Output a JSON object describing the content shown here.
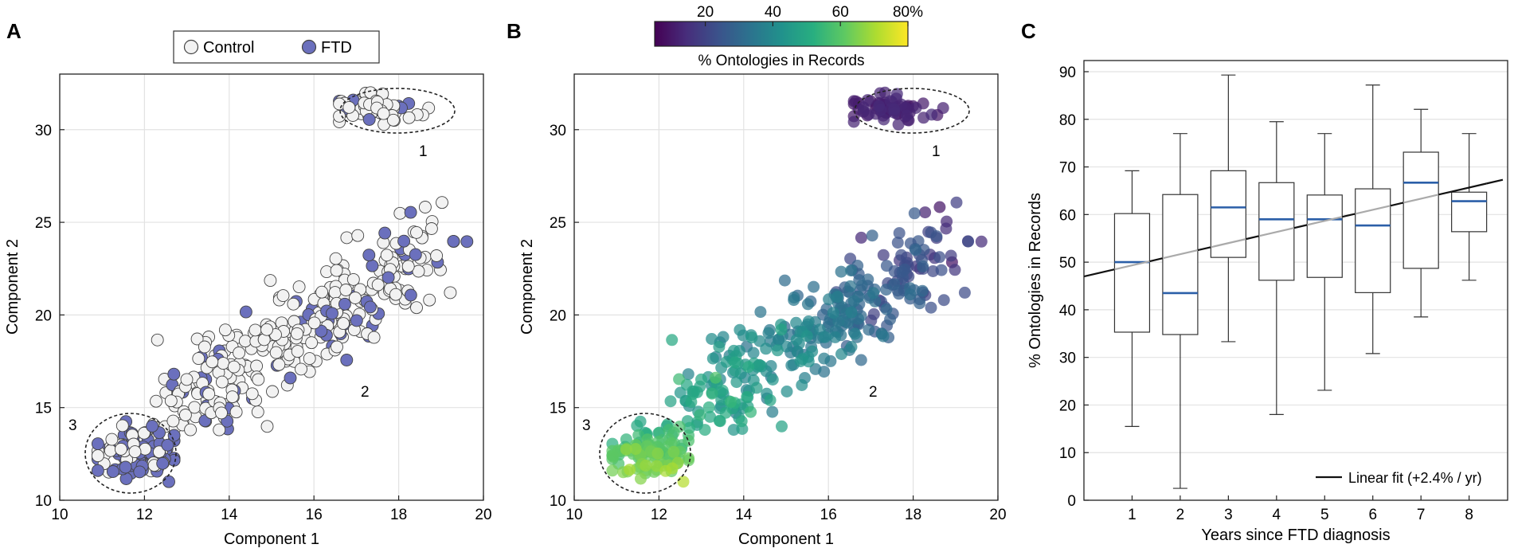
{
  "panels": {
    "a_label": "A",
    "b_label": "B",
    "c_label": "C"
  },
  "colors": {
    "control_fill": "#f2f2f2",
    "ftd_fill": "#6b70bd",
    "grid": "#e2e2e2",
    "median": "#2b5fa8",
    "fit_dark": "#111111",
    "fit_light": "#aaaaaa",
    "viridis": [
      "#440154",
      "#472d7b",
      "#3b528b",
      "#2c728e",
      "#21918c",
      "#28ae80",
      "#5ec962",
      "#addc30",
      "#fde725"
    ]
  },
  "chart_data": [
    {
      "panel": "A",
      "type": "scatter",
      "xlabel": "Component 1",
      "ylabel": "Component 2",
      "xlim": [
        10,
        20
      ],
      "ylim": [
        10,
        33
      ],
      "xticks": [
        10,
        12,
        14,
        16,
        18,
        20
      ],
      "yticks": [
        10,
        15,
        20,
        25,
        30
      ],
      "grid": true,
      "legend": {
        "position": "top-center",
        "entries": [
          "Control",
          "FTD"
        ]
      },
      "cluster_labels": [
        "1",
        "2",
        "3"
      ],
      "clusters": [
        {
          "label": "1",
          "center": [
            17.45,
            31.2
          ],
          "spread": [
            0.55,
            0.45
          ],
          "count": 70,
          "ftd_fraction": 0.15
        },
        {
          "label": "2",
          "center": [
            15.5,
            18.0
          ],
          "along": "diagonal from (12.5,14.5) to (19,24)",
          "count": 330,
          "ftd_fraction": 0.15
        },
        {
          "label": "3",
          "center": [
            11.75,
            12.5
          ],
          "spread": [
            0.6,
            0.85
          ],
          "count": 110,
          "ftd_fraction": 0.7
        }
      ]
    },
    {
      "panel": "B",
      "type": "scatter",
      "xlabel": "Component 1",
      "ylabel": "Component 2",
      "xlim": [
        10,
        20
      ],
      "ylim": [
        10,
        33
      ],
      "xticks": [
        10,
        12,
        14,
        16,
        18,
        20
      ],
      "yticks": [
        10,
        15,
        20,
        25,
        30
      ],
      "grid": true,
      "colorbar": {
        "label": "% Ontologies in Records",
        "ticks": [
          "20",
          "40",
          "60",
          "80%"
        ],
        "range": [
          5,
          80
        ]
      },
      "cluster_labels": [
        "1",
        "2",
        "3"
      ],
      "color_trend": "cluster 1 ≈ 8%; cluster 2 from ≈55% at lower-left to ≈20% at upper-right; cluster 3 ≈ 65–80%"
    },
    {
      "panel": "C",
      "type": "box",
      "xlabel": "Years since FTD diagnosis",
      "ylabel": "% Ontologies in Records",
      "categories": [
        "1",
        "2",
        "3",
        "4",
        "5",
        "6",
        "7",
        "8"
      ],
      "ylim": [
        0,
        90
      ],
      "yticks": [
        0,
        10,
        20,
        30,
        40,
        50,
        60,
        70,
        80,
        90
      ],
      "boxes": [
        {
          "x": 1,
          "min": 15.5,
          "q1": 35.3,
          "median": 50.0,
          "q3": 60.2,
          "max": 69.2
        },
        {
          "x": 2,
          "min": 2.5,
          "q1": 34.8,
          "median": 43.5,
          "q3": 64.2,
          "max": 77.0
        },
        {
          "x": 3,
          "min": 33.3,
          "q1": 51.0,
          "median": 61.5,
          "q3": 69.2,
          "max": 89.3
        },
        {
          "x": 4,
          "min": 18.0,
          "q1": 46.2,
          "median": 59.0,
          "q3": 66.7,
          "max": 79.5
        },
        {
          "x": 5,
          "min": 23.1,
          "q1": 46.8,
          "median": 59.0,
          "q3": 64.1,
          "max": 77.0
        },
        {
          "x": 6,
          "min": 30.8,
          "q1": 43.6,
          "median": 57.7,
          "q3": 65.4,
          "max": 87.2
        },
        {
          "x": 7,
          "min": 38.5,
          "q1": 48.7,
          "median": 66.7,
          "q3": 73.1,
          "max": 82.1
        },
        {
          "x": 8,
          "min": 46.2,
          "q1": 56.4,
          "median": 62.8,
          "q3": 64.7,
          "max": 77.0
        }
      ],
      "fit": {
        "label": "Linear fit (+2.4% / yr)",
        "slope": 2.4,
        "x_range": [
          0,
          8.7
        ],
        "y_start": 47.0,
        "y_end": 67.3
      }
    }
  ]
}
